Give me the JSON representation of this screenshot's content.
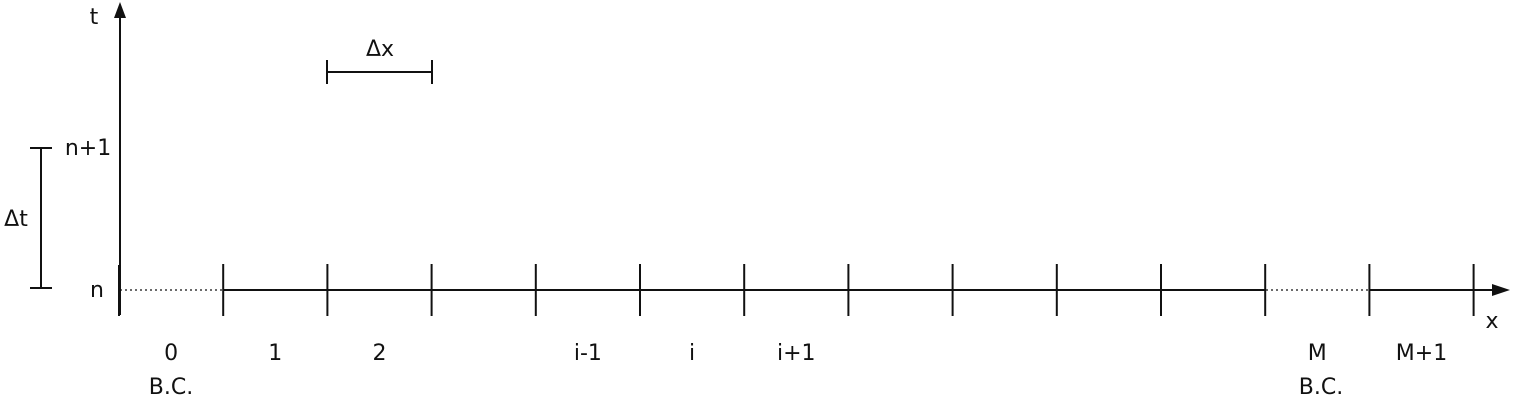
{
  "axes": {
    "time_label": "t",
    "space_label": "x"
  },
  "time_levels": {
    "current": "n",
    "next": "n+1",
    "step_label": "Δt"
  },
  "space_step_label": "Δx",
  "cells": [
    "0",
    "1",
    "2",
    "",
    "i-1",
    "i",
    "i+1",
    "",
    "",
    "",
    "",
    "M",
    "M+1"
  ],
  "boundary_labels": {
    "left": "B.C.",
    "right": "B.C."
  }
}
